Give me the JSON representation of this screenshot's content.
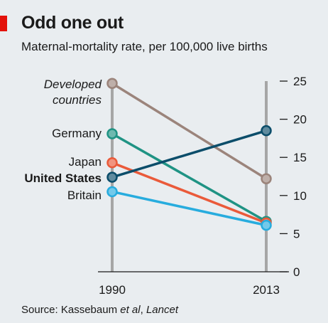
{
  "header": {
    "title": "Odd one out",
    "subtitle": "Maternal-mortality rate, per 100,000 live births"
  },
  "source": {
    "prefix": "Source: Kassebaum ",
    "etal": "et al",
    "separator": ", ",
    "journal": "Lancet"
  },
  "chart_data": {
    "type": "line",
    "title": "Odd one out",
    "subtitle": "Maternal-mortality rate, per 100,000 live births",
    "x": [
      "1990",
      "2013"
    ],
    "ylim": [
      0,
      25
    ],
    "yticks": [
      0,
      5,
      10,
      15,
      20,
      25
    ],
    "y_axis_side": "right",
    "grid": false,
    "legend": "labels at left of 1990 column",
    "series": [
      {
        "name": "Developed countries",
        "label_lines": [
          "Developed",
          "countries"
        ],
        "label_style": "italic",
        "color": "#9b847b",
        "values": [
          24.7,
          12.2
        ]
      },
      {
        "name": "Germany",
        "label_lines": [
          "Germany"
        ],
        "label_style": "normal",
        "color": "#1f9384",
        "values": [
          18.1,
          6.6
        ]
      },
      {
        "name": "Japan",
        "label_lines": [
          "Japan"
        ],
        "label_style": "normal",
        "color": "#ea5a3a",
        "values": [
          14.3,
          6.4
        ]
      },
      {
        "name": "Britain",
        "label_lines": [
          "Britain"
        ],
        "label_style": "normal",
        "color": "#27acde",
        "values": [
          10.5,
          6.1
        ]
      },
      {
        "name": "United States",
        "label_lines": [
          "United States"
        ],
        "label_style": "bold",
        "color": "#0b4d6a",
        "values": [
          12.4,
          18.5
        ]
      }
    ]
  }
}
